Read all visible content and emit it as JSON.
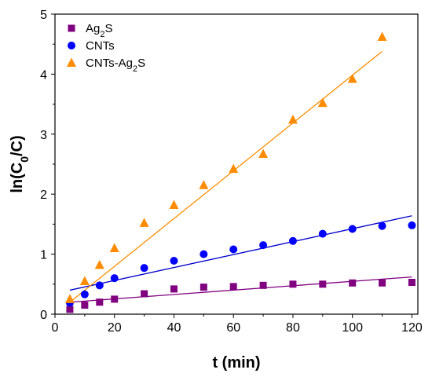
{
  "chart_data": {
    "type": "scatter",
    "xlabel": "t (min)",
    "ylabel": {
      "base": "ln(C",
      "sub": "0",
      "tail": "/C)"
    },
    "xlim": [
      0,
      122
    ],
    "ylim": [
      0,
      5
    ],
    "xticks": [
      0,
      20,
      40,
      60,
      80,
      100,
      120
    ],
    "yticks": [
      0,
      1,
      2,
      3,
      4,
      5
    ],
    "legend_position": "top-left",
    "series": [
      {
        "name": "Ag2S",
        "label_parts": {
          "base": "Ag",
          "sub": "2",
          "tail": "S"
        },
        "marker": "square",
        "color": "#800080",
        "line_color": "#800080",
        "x": [
          5,
          10,
          15,
          20,
          30,
          40,
          50,
          60,
          70,
          80,
          90,
          100,
          110,
          120
        ],
        "y": [
          0.08,
          0.15,
          0.2,
          0.25,
          0.34,
          0.42,
          0.45,
          0.46,
          0.48,
          0.5,
          0.5,
          0.52,
          0.52,
          0.53
        ],
        "fit": {
          "x": [
            5,
            120
          ],
          "y": [
            0.2,
            0.62
          ]
        }
      },
      {
        "name": "CNTs",
        "label_parts": {
          "base": " CNTs",
          "sub": "",
          "tail": ""
        },
        "marker": "circle",
        "color": "#0000ff",
        "line_color": "#0000cc",
        "x": [
          5,
          10,
          15,
          20,
          30,
          40,
          50,
          60,
          70,
          80,
          90,
          100,
          110,
          120
        ],
        "y": [
          0.19,
          0.33,
          0.48,
          0.6,
          0.77,
          0.89,
          1.0,
          1.08,
          1.15,
          1.22,
          1.34,
          1.42,
          1.47,
          1.48
        ],
        "fit": {
          "x": [
            5,
            120
          ],
          "y": [
            0.4,
            1.64
          ]
        }
      },
      {
        "name": "CNTs-Ag2S",
        "label_parts": {
          "base": "CNTs-Ag",
          "sub": "2",
          "tail": "S"
        },
        "marker": "triangle",
        "color": "#ff8c00",
        "line_color": "#ff8c00",
        "x": [
          5,
          10,
          15,
          20,
          30,
          40,
          50,
          60,
          70,
          80,
          90,
          100,
          110
        ],
        "y": [
          0.25,
          0.55,
          0.82,
          1.1,
          1.52,
          1.82,
          2.15,
          2.42,
          2.67,
          3.24,
          3.52,
          3.92,
          4.62
        ],
        "fit": {
          "x": [
            5,
            110
          ],
          "y": [
            0.2,
            4.38
          ]
        }
      }
    ]
  }
}
